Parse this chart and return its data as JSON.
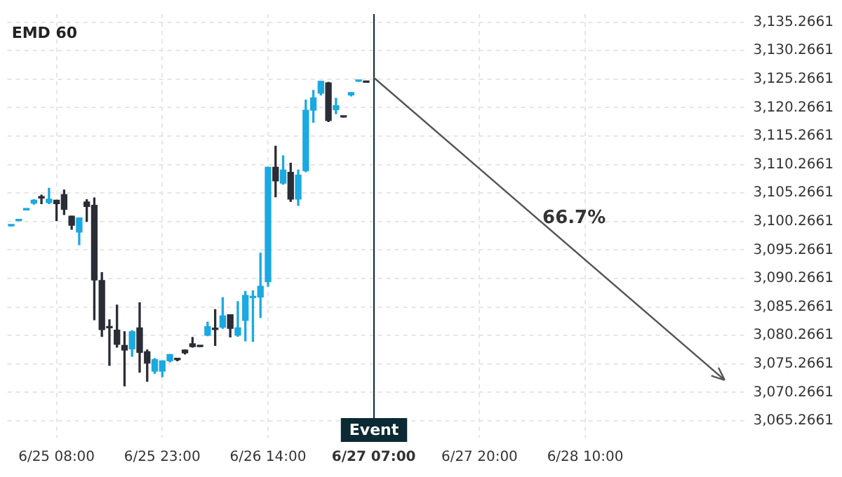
{
  "chart_data": {
    "type": "candlestick",
    "title": "EMD 60",
    "categories": [
      null,
      null,
      null,
      null,
      null,
      null,
      "6/25 08:00",
      null,
      null,
      null,
      null,
      null,
      null,
      null,
      null,
      null,
      null,
      null,
      null,
      null,
      "6/25 23:00",
      null,
      null,
      null,
      null,
      null,
      null,
      null,
      null,
      null,
      null,
      null,
      null,
      null,
      "6/26 14:00",
      null,
      null,
      null,
      null,
      null,
      null,
      null,
      null,
      null,
      null,
      null,
      null,
      null,
      "6/27 07:00",
      null,
      null,
      null,
      null,
      null,
      null,
      null,
      null,
      null,
      null,
      null,
      null,
      null,
      "6/27 20:00",
      null,
      null,
      null,
      null,
      null,
      null,
      null,
      null,
      null,
      null,
      null,
      null,
      null,
      "6/28 10:00",
      null,
      null,
      null,
      null,
      null,
      null,
      null,
      null,
      null,
      null,
      null,
      null,
      null,
      null,
      null,
      null,
      null,
      null,
      null,
      null,
      null
    ],
    "ohlc": [
      [
        3099.5,
        3099.5,
        3099.5,
        3099.5
      ],
      [
        3100.4,
        3100.4,
        3100.4,
        3100.4
      ],
      [
        3102.3,
        3102.3,
        3102.3,
        3102.3
      ],
      [
        3103.5,
        3104.1,
        3103.3,
        3104.0
      ],
      [
        3104.4,
        3104.9,
        3103.4,
        3104.4
      ],
      [
        3103.6,
        3106.1,
        3103.4,
        3104.2
      ],
      [
        3104.0,
        3104.0,
        3100.4,
        3103.4
      ],
      [
        3105.0,
        3105.8,
        3101.5,
        3102.4
      ],
      [
        3101.2,
        3101.2,
        3098.9,
        3099.6
      ],
      [
        3098.4,
        3100.9,
        3096.2,
        3100.9
      ],
      [
        3103.7,
        3104.1,
        3100.3,
        3102.9
      ],
      [
        3103.1,
        3104.4,
        3083.0,
        3090.0
      ],
      [
        3089.9,
        3091.3,
        3080.1,
        3081.3
      ],
      [
        3081.6,
        3083.0,
        3075.0,
        3081.6
      ],
      [
        3081.2,
        3085.6,
        3078.2,
        3078.7
      ],
      [
        3078.5,
        3080.9,
        3071.4,
        3077.7
      ],
      [
        3077.9,
        3081.1,
        3076.6,
        3080.9
      ],
      [
        3081.6,
        3086.0,
        3073.8,
        3077.3
      ],
      [
        3077.4,
        3077.7,
        3072.2,
        3075.4
      ],
      [
        3074.0,
        3076.2,
        3073.6,
        3076.0
      ],
      [
        3074.0,
        3075.8,
        3073.0,
        3075.8
      ],
      [
        3075.8,
        3076.9,
        3075.6,
        3076.9
      ],
      [
        3076.2,
        3076.2,
        3075.8,
        3076.0
      ],
      [
        3077.7,
        3077.7,
        3077.0,
        3077.2
      ],
      [
        3078.8,
        3079.9,
        3078.2,
        3078.3
      ],
      [
        3078.3,
        3078.3,
        3078.3,
        3078.3
      ],
      [
        3080.3,
        3082.6,
        3080.2,
        3081.8
      ],
      [
        3081.3,
        3084.8,
        3078.5,
        3081.3
      ],
      [
        3081.7,
        3086.9,
        3081.5,
        3083.7
      ],
      [
        3083.9,
        3083.9,
        3080.0,
        3081.5
      ],
      [
        3080.3,
        3086.2,
        3080.1,
        3081.6
      ],
      [
        3082.9,
        3088.0,
        3079.3,
        3087.3
      ],
      [
        3086.9,
        3088.1,
        3079.2,
        3087.0
      ],
      [
        3087.0,
        3094.7,
        3083.4,
        3088.9
      ],
      [
        3089.7,
        3109.8,
        3088.9,
        3109.8
      ],
      [
        3109.8,
        3113.5,
        3104.6,
        3107.4
      ],
      [
        3107.0,
        3111.8,
        3106.8,
        3109.3
      ],
      [
        3108.9,
        3110.5,
        3103.8,
        3104.2
      ],
      [
        3104.2,
        3109.3,
        3103.1,
        3108.4
      ],
      [
        3109.2,
        3121.6,
        3109.0,
        3119.8
      ],
      [
        3119.8,
        3123.3,
        3117.7,
        3122.0
      ],
      [
        3122.8,
        3124.9,
        3122.5,
        3124.9
      ],
      [
        3124.6,
        3124.7,
        3117.8,
        3118.0
      ],
      [
        3119.9,
        3121.9,
        3119.2,
        3120.6
      ],
      [
        3118.6,
        3118.6,
        3118.6,
        3118.6
      ],
      [
        3122.5,
        3122.9,
        3122.3,
        3122.9
      ],
      [
        3124.9,
        3125.0,
        3124.9,
        3125.0
      ],
      [
        3124.9,
        3124.9,
        3124.7,
        3124.7
      ],
      null,
      null,
      null,
      null,
      null,
      null,
      null,
      null,
      null,
      null,
      null,
      null,
      null,
      null,
      null,
      null,
      null,
      null,
      null,
      null,
      null,
      null,
      null,
      null,
      null,
      null,
      null,
      null,
      null,
      null,
      null,
      null,
      null,
      null,
      null,
      null,
      null,
      null,
      null,
      null,
      null,
      null,
      null,
      null,
      null,
      null,
      null,
      null,
      null,
      null
    ],
    "colors": [
      "#1ba9e1",
      "#1ba9e1",
      "#1ba9e1",
      "#1ba9e1",
      "#2b2d36",
      "#1ba9e1",
      "#2b2d36",
      "#2b2d36",
      "#2b2d36",
      "#1ba9e1",
      "#2b2d36",
      "#2b2d36",
      "#2b2d36",
      "#2b2d36",
      "#2b2d36",
      "#2b2d36",
      "#1ba9e1",
      "#2b2d36",
      "#2b2d36",
      "#1ba9e1",
      "#1ba9e1",
      "#1ba9e1",
      "#2b2d36",
      "#2b2d36",
      "#2b2d36",
      "#2b2d36",
      "#1ba9e1",
      "#2b2d36",
      "#1ba9e1",
      "#2b2d36",
      "#1ba9e1",
      "#1ba9e1",
      "#1ba9e1",
      "#1ba9e1",
      "#1ba9e1",
      "#2b2d36",
      "#1ba9e1",
      "#2b2d36",
      "#1ba9e1",
      "#1ba9e1",
      "#1ba9e1",
      "#1ba9e1",
      "#2b2d36",
      "#1ba9e1",
      "#2b2d36",
      "#1ba9e1",
      "#1ba9e1",
      "#2b2d36",
      null,
      null,
      null,
      null,
      null,
      null,
      null,
      null,
      null,
      null,
      null,
      null,
      null,
      null,
      null,
      null,
      null,
      null,
      null,
      null,
      null,
      null,
      null,
      null,
      null,
      null,
      null,
      null,
      null,
      null,
      null,
      null,
      null,
      null,
      null,
      null,
      null,
      null,
      null,
      null,
      null,
      null,
      null,
      null,
      null,
      null,
      null,
      null,
      null,
      null
    ],
    "ylim": [
      3062.3,
      3136.7
    ],
    "yticks": [
      {
        "value": 3065.2661,
        "label": "3,065.2661"
      },
      {
        "value": 3070.2661,
        "label": "3,070.2661"
      },
      {
        "value": 3075.2661,
        "label": "3,075.2661"
      },
      {
        "value": 3080.2661,
        "label": "3,080.2661"
      },
      {
        "value": 3085.2661,
        "label": "3,085.2661"
      },
      {
        "value": 3090.2661,
        "label": "3,090.2661"
      },
      {
        "value": 3095.2661,
        "label": "3,095.2661"
      },
      {
        "value": 3100.2661,
        "label": "3,100.2661"
      },
      {
        "value": 3105.2661,
        "label": "3,105.2661"
      },
      {
        "value": 3110.2661,
        "label": "3,110.2661"
      },
      {
        "value": 3115.2661,
        "label": "3,115.2661"
      },
      {
        "value": 3120.2661,
        "label": "3,120.2661"
      },
      {
        "value": 3125.2661,
        "label": "3,125.2661"
      },
      {
        "value": 3130.2661,
        "label": "3,130.2661"
      },
      {
        "value": 3135.2661,
        "label": "3,135.2661"
      }
    ],
    "ref_lines": [
      {
        "axis": "x",
        "value": "6/27 07:00",
        "label": "Event",
        "color": "#0b2a33"
      }
    ],
    "annotations": [
      "66.7%"
    ],
    "grid": true,
    "legend": false
  }
}
